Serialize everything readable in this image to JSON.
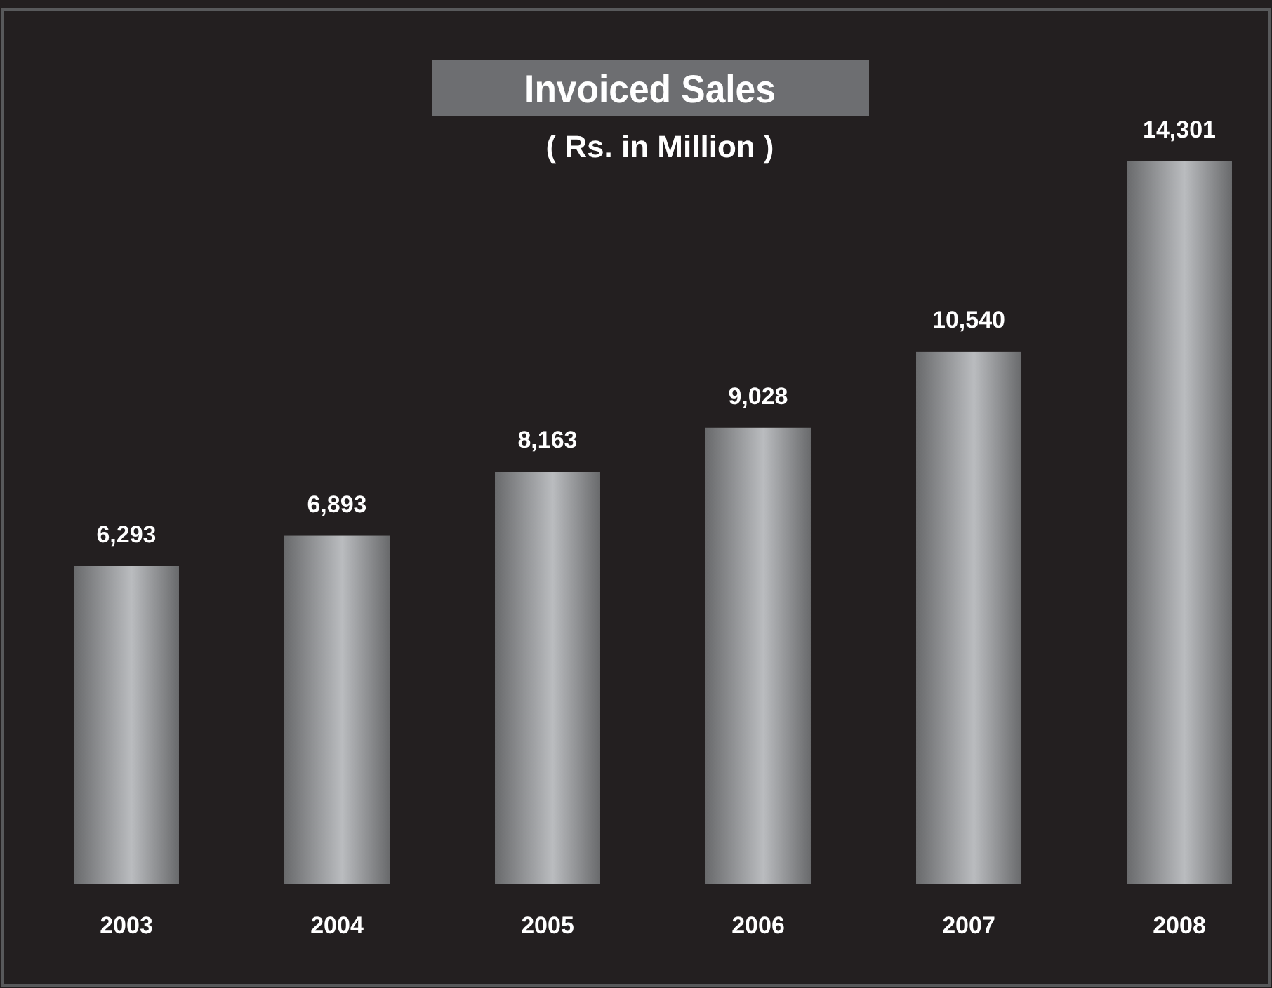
{
  "chart_data": {
    "type": "bar",
    "title": "Invoiced Sales",
    "subtitle": "( Rs. in Million )",
    "categories": [
      "2003",
      "2004",
      "2005",
      "2006",
      "2007",
      "2008"
    ],
    "values": [
      6293,
      6893,
      8163,
      9028,
      10540,
      14301
    ],
    "value_labels": [
      "6,293",
      "6,893",
      "8,163",
      "9,028",
      "10,540",
      "14,301"
    ],
    "color": "#a7a9ac"
  }
}
